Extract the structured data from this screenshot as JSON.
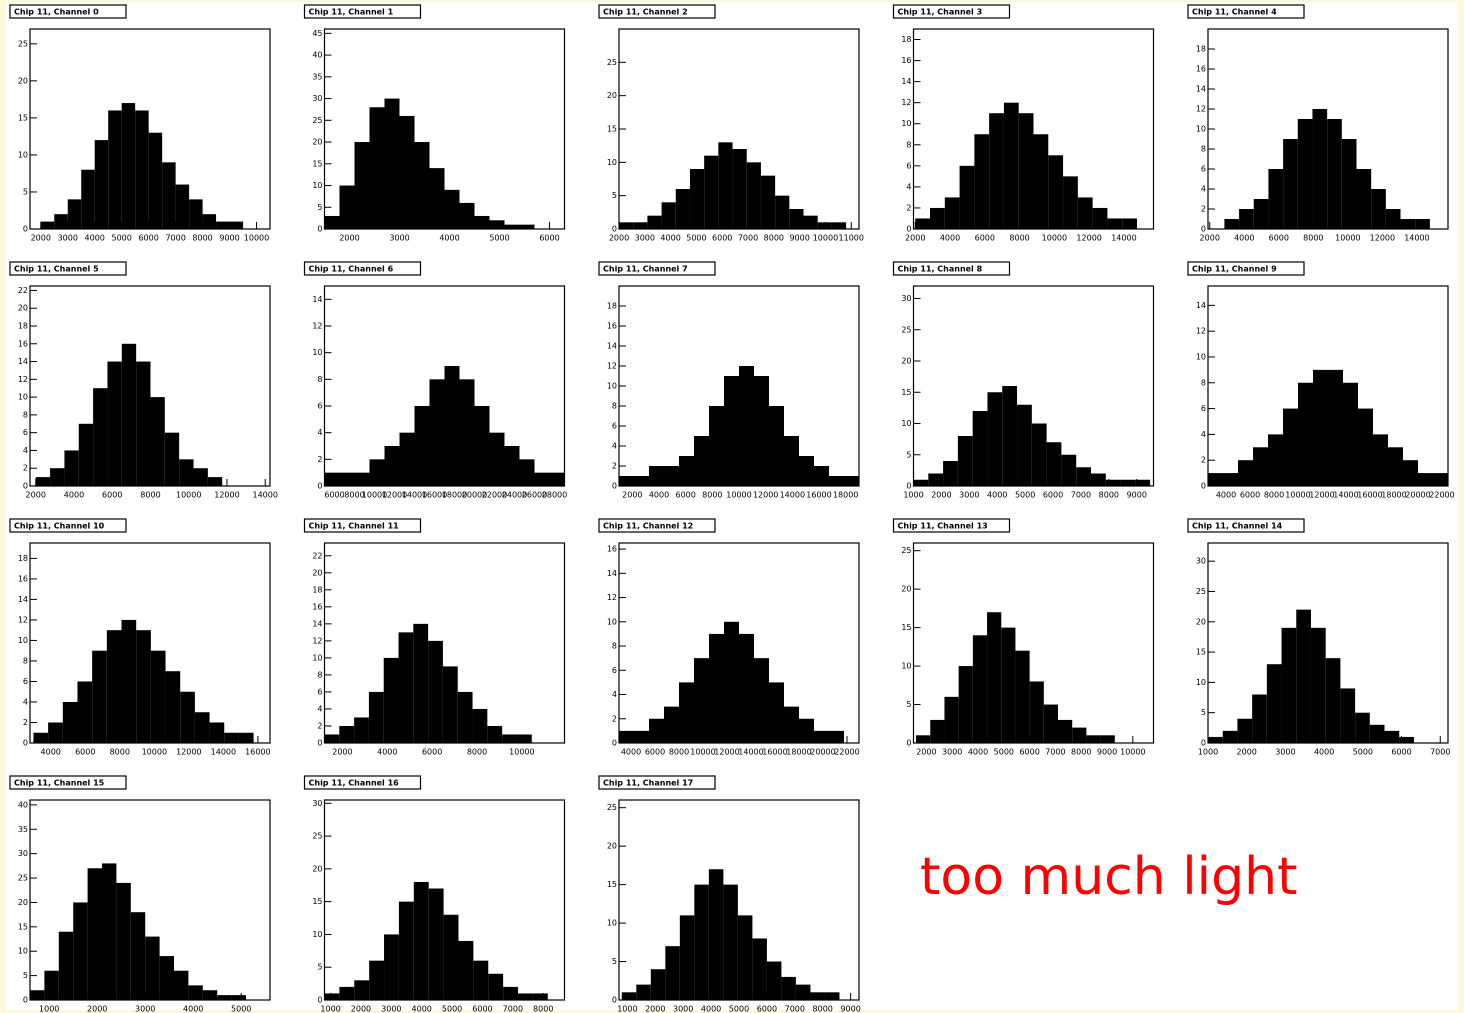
{
  "chart_data": [
    {
      "type": "histogram",
      "title": "Chip 11, Channel 0",
      "bins": [
        2000,
        2500,
        3000,
        3500,
        4000,
        4500,
        5000,
        5500,
        6000,
        6500,
        7000,
        7500,
        8000,
        8500,
        9000,
        9500,
        10000
      ],
      "values": [
        1,
        2,
        4,
        8,
        12,
        16,
        17,
        16,
        13,
        9,
        6,
        4,
        2,
        1,
        1,
        0
      ],
      "color": "#000000",
      "xlim": [
        1600,
        10500
      ],
      "xticks": [
        2000,
        3000,
        4000,
        5000,
        6000,
        7000,
        8000,
        9000,
        10000
      ],
      "ylim": [
        0,
        27
      ],
      "yticks": [
        0,
        5,
        10,
        15,
        20,
        25
      ]
    },
    {
      "type": "histogram",
      "title": "Chip 11, Channel 1",
      "bins": [
        1500,
        1800,
        2100,
        2400,
        2700,
        3000,
        3300,
        3600,
        3900,
        4200,
        4500,
        4800,
        5100,
        5400,
        5700,
        6000,
        6300
      ],
      "values": [
        3,
        10,
        20,
        28,
        30,
        26,
        20,
        14,
        9,
        6,
        3,
        2,
        1,
        1,
        0,
        0
      ],
      "color": "#000000",
      "xlim": [
        1500,
        6300
      ],
      "xticks": [
        2000,
        3000,
        4000,
        5000,
        6000
      ],
      "ylim": [
        0,
        46
      ],
      "yticks": [
        0,
        5,
        10,
        15,
        20,
        25,
        30,
        35,
        40,
        45
      ]
    },
    {
      "type": "histogram",
      "title": "Chip 11, Channel 2",
      "bins": [
        2000,
        2550,
        3100,
        3650,
        4200,
        4750,
        5300,
        5850,
        6400,
        6950,
        7500,
        8050,
        8600,
        9150,
        9700,
        10250,
        10800
      ],
      "values": [
        1,
        1,
        2,
        4,
        6,
        9,
        11,
        13,
        12,
        10,
        8,
        5,
        3,
        2,
        1,
        1
      ],
      "color": "#000000",
      "xlim": [
        2000,
        11300
      ],
      "xticks": [
        2000,
        3000,
        4000,
        5000,
        6000,
        7000,
        8000,
        9000,
        10000,
        11000
      ],
      "ylim": [
        0,
        30
      ],
      "yticks": [
        0,
        5,
        10,
        15,
        20,
        25
      ]
    },
    {
      "type": "histogram",
      "title": "Chip 11, Channel 3",
      "bins": [
        2000,
        2850,
        3700,
        4550,
        5400,
        6250,
        7100,
        7950,
        8800,
        9650,
        10500,
        11350,
        12200,
        13050,
        13900,
        14750,
        15600
      ],
      "values": [
        1,
        2,
        3,
        6,
        9,
        11,
        12,
        11,
        9,
        7,
        5,
        3,
        2,
        1,
        1,
        0
      ],
      "color": "#000000",
      "xlim": [
        1900,
        15700
      ],
      "xticks": [
        2000,
        4000,
        6000,
        8000,
        10000,
        12000,
        14000
      ],
      "ylim": [
        0,
        19
      ],
      "yticks": [
        0,
        2,
        4,
        6,
        8,
        10,
        12,
        14,
        16,
        18
      ]
    },
    {
      "type": "histogram",
      "title": "Chip 11, Channel 4",
      "bins": [
        2000,
        2850,
        3700,
        4550,
        5400,
        6250,
        7100,
        7950,
        8800,
        9650,
        10500,
        11350,
        12200,
        13050,
        13900,
        14750,
        15600
      ],
      "values": [
        0,
        1,
        2,
        3,
        6,
        9,
        11,
        12,
        11,
        9,
        6,
        4,
        2,
        1,
        1,
        0
      ],
      "color": "#000000",
      "xlim": [
        1900,
        15800
      ],
      "xticks": [
        2000,
        4000,
        6000,
        8000,
        10000,
        12000,
        14000
      ],
      "ylim": [
        0,
        20
      ],
      "yticks": [
        0,
        2,
        4,
        6,
        8,
        10,
        12,
        14,
        16,
        18
      ]
    },
    {
      "type": "histogram",
      "title": "Chip 11, Channel 5",
      "bins": [
        2000,
        2750,
        3500,
        4250,
        5000,
        5750,
        6500,
        7250,
        8000,
        8750,
        9500,
        10250,
        11000,
        11750,
        12500,
        13250,
        14000
      ],
      "values": [
        1,
        2,
        4,
        7,
        11,
        14,
        16,
        14,
        10,
        6,
        3,
        2,
        1,
        0,
        0,
        0
      ],
      "color": "#000000",
      "xlim": [
        1700,
        14250
      ],
      "xticks": [
        2000,
        4000,
        6000,
        8000,
        10000,
        12000,
        14000
      ],
      "ylim": [
        0,
        22.5
      ],
      "yticks": [
        0,
        2,
        4,
        6,
        8,
        10,
        12,
        14,
        16,
        18,
        20,
        22
      ]
    },
    {
      "type": "histogram",
      "title": "Chip 11, Channel 6",
      "bins": [
        5000,
        6500,
        8000,
        9500,
        11000,
        12500,
        14000,
        15500,
        17000,
        18500,
        20000,
        21500,
        23000,
        24500,
        26000,
        27500,
        29000
      ],
      "values": [
        1,
        1,
        1,
        2,
        3,
        4,
        6,
        8,
        9,
        8,
        6,
        4,
        3,
        2,
        1,
        1
      ],
      "color": "#000000",
      "xlim": [
        5000,
        29000
      ],
      "xticks": [
        6000,
        8000,
        10000,
        12000,
        14000,
        16000,
        18000,
        20000,
        22000,
        24000,
        26000,
        28000
      ],
      "ylim": [
        0,
        15
      ],
      "yticks": [
        0,
        2,
        4,
        6,
        8,
        10,
        12,
        14
      ]
    },
    {
      "type": "histogram",
      "title": "Chip 11, Channel 7",
      "bins": [
        1000,
        2125,
        3250,
        4375,
        5500,
        6625,
        7750,
        8875,
        10000,
        11125,
        12250,
        13375,
        14500,
        15625,
        16750,
        17875,
        19000
      ],
      "values": [
        1,
        1,
        2,
        2,
        3,
        5,
        8,
        11,
        12,
        11,
        8,
        5,
        3,
        2,
        1,
        1
      ],
      "color": "#000000",
      "xlim": [
        1000,
        19000
      ],
      "xticks": [
        2000,
        4000,
        6000,
        8000,
        10000,
        12000,
        14000,
        16000,
        18000
      ],
      "ylim": [
        0,
        20
      ],
      "yticks": [
        0,
        2,
        4,
        6,
        8,
        10,
        12,
        14,
        16,
        18
      ]
    },
    {
      "type": "histogram",
      "title": "Chip 11, Channel 8",
      "bins": [
        1000,
        1530,
        2060,
        2590,
        3120,
        3650,
        4180,
        4710,
        5240,
        5770,
        6300,
        6830,
        7360,
        7890,
        8420,
        8950,
        9480
      ],
      "values": [
        1,
        2,
        4,
        8,
        12,
        15,
        16,
        13,
        10,
        7,
        5,
        3,
        2,
        1,
        1,
        1
      ],
      "color": "#000000",
      "xlim": [
        1000,
        9600
      ],
      "xticks": [
        1000,
        2000,
        3000,
        4000,
        5000,
        6000,
        7000,
        8000,
        9000
      ],
      "ylim": [
        0,
        32
      ],
      "yticks": [
        0,
        5,
        10,
        15,
        20,
        25,
        30
      ]
    },
    {
      "type": "histogram",
      "title": "Chip 11, Channel 9",
      "bins": [
        2500,
        3750,
        5000,
        6250,
        7500,
        8750,
        10000,
        11250,
        12500,
        13750,
        15000,
        16250,
        17500,
        18750,
        20000,
        21250,
        22500
      ],
      "values": [
        1,
        1,
        2,
        3,
        4,
        6,
        8,
        9,
        9,
        8,
        6,
        4,
        3,
        2,
        1,
        1
      ],
      "color": "#000000",
      "xlim": [
        2500,
        22500
      ],
      "xticks": [
        4000,
        6000,
        8000,
        10000,
        12000,
        14000,
        16000,
        18000,
        20000,
        22000
      ],
      "ylim": [
        0,
        15.5
      ],
      "yticks": [
        0,
        2,
        4,
        6,
        8,
        10,
        12,
        14
      ]
    },
    {
      "type": "histogram",
      "title": "Chip 11, Channel 10",
      "bins": [
        3000,
        3850,
        4700,
        5550,
        6400,
        7250,
        8100,
        8950,
        9800,
        10650,
        11500,
        12350,
        13200,
        14050,
        14900,
        15750,
        16600
      ],
      "values": [
        1,
        2,
        4,
        6,
        9,
        11,
        12,
        11,
        9,
        7,
        5,
        3,
        2,
        1,
        1,
        0
      ],
      "color": "#000000",
      "xlim": [
        2800,
        16700
      ],
      "xticks": [
        4000,
        6000,
        8000,
        10000,
        12000,
        14000,
        16000
      ],
      "ylim": [
        0,
        19.5
      ],
      "yticks": [
        0,
        2,
        4,
        6,
        8,
        10,
        12,
        14,
        16,
        18
      ]
    },
    {
      "type": "histogram",
      "title": "Chip 11, Channel 11",
      "bins": [
        1200,
        1860,
        2520,
        3180,
        3840,
        4500,
        5160,
        5820,
        6480,
        7140,
        7800,
        8460,
        9120,
        9780,
        10440,
        11100,
        11760
      ],
      "values": [
        1,
        2,
        3,
        6,
        10,
        13,
        14,
        12,
        9,
        6,
        4,
        2,
        1,
        1,
        0,
        0
      ],
      "color": "#000000",
      "xlim": [
        1200,
        11900
      ],
      "xticks": [
        2000,
        4000,
        6000,
        8000,
        10000
      ],
      "ylim": [
        0,
        23.5
      ],
      "yticks": [
        0,
        2,
        4,
        6,
        8,
        10,
        12,
        14,
        16,
        18,
        20,
        22
      ]
    },
    {
      "type": "histogram",
      "title": "Chip 11, Channel 12",
      "bins": [
        3000,
        4250,
        5500,
        6750,
        8000,
        9250,
        10500,
        11750,
        13000,
        14250,
        15500,
        16750,
        18000,
        19250,
        20500,
        21750,
        23000
      ],
      "values": [
        1,
        1,
        2,
        3,
        5,
        7,
        9,
        10,
        9,
        7,
        5,
        3,
        2,
        1,
        1,
        0
      ],
      "color": "#000000",
      "xlim": [
        3000,
        23000
      ],
      "xticks": [
        4000,
        6000,
        8000,
        10000,
        12000,
        14000,
        16000,
        18000,
        20000,
        22000
      ],
      "ylim": [
        0,
        16.5
      ],
      "yticks": [
        0,
        2,
        4,
        6,
        8,
        10,
        12,
        14,
        16
      ]
    },
    {
      "type": "histogram",
      "title": "Chip 11, Channel 13",
      "bins": [
        1600,
        2150,
        2700,
        3250,
        3800,
        4350,
        4900,
        5450,
        6000,
        6550,
        7100,
        7650,
        8200,
        8750,
        9300,
        9850,
        10400
      ],
      "values": [
        1,
        3,
        6,
        10,
        14,
        17,
        15,
        12,
        8,
        5,
        3,
        2,
        1,
        1,
        0,
        0
      ],
      "color": "#000000",
      "xlim": [
        1500,
        10800
      ],
      "xticks": [
        2000,
        3000,
        4000,
        5000,
        6000,
        7000,
        8000,
        9000,
        10000
      ],
      "ylim": [
        0,
        26
      ],
      "yticks": [
        0,
        5,
        10,
        15,
        20,
        25
      ]
    },
    {
      "type": "histogram",
      "title": "Chip 11, Channel 14",
      "bins": [
        1000,
        1380,
        1760,
        2140,
        2520,
        2900,
        3280,
        3660,
        4040,
        4420,
        4800,
        5180,
        5560,
        5940,
        6320,
        6700,
        7080
      ],
      "values": [
        1,
        2,
        4,
        8,
        13,
        19,
        22,
        19,
        14,
        9,
        5,
        3,
        2,
        1,
        0,
        0
      ],
      "color": "#000000",
      "xlim": [
        1000,
        7200
      ],
      "xticks": [
        1000,
        2000,
        3000,
        4000,
        5000,
        6000,
        7000
      ],
      "ylim": [
        0,
        33
      ],
      "yticks": [
        0,
        5,
        10,
        15,
        20,
        25,
        30
      ]
    },
    {
      "type": "histogram",
      "title": "Chip 11, Channel 15",
      "bins": [
        600,
        900,
        1200,
        1500,
        1800,
        2100,
        2400,
        2700,
        3000,
        3300,
        3600,
        3900,
        4200,
        4500,
        4800,
        5100,
        5400
      ],
      "values": [
        2,
        6,
        14,
        20,
        27,
        28,
        24,
        18,
        13,
        9,
        6,
        3,
        2,
        1,
        1,
        0
      ],
      "color": "#000000",
      "xlim": [
        600,
        5600
      ],
      "xticks": [
        1000,
        2000,
        3000,
        4000,
        5000
      ],
      "ylim": [
        0,
        41
      ],
      "yticks": [
        0,
        5,
        10,
        15,
        20,
        25,
        30,
        35,
        40
      ]
    },
    {
      "type": "histogram",
      "title": "Chip 11, Channel 16",
      "bins": [
        800,
        1290,
        1780,
        2270,
        2760,
        3250,
        3740,
        4230,
        4720,
        5210,
        5700,
        6190,
        6680,
        7170,
        7660,
        8150,
        8640
      ],
      "values": [
        1,
        2,
        3,
        6,
        10,
        15,
        18,
        17,
        13,
        9,
        6,
        4,
        2,
        1,
        1,
        0
      ],
      "color": "#000000",
      "xlim": [
        800,
        8700
      ],
      "xticks": [
        1000,
        2000,
        3000,
        4000,
        5000,
        6000,
        7000,
        8000
      ],
      "ylim": [
        0,
        30.5
      ],
      "yticks": [
        0,
        5,
        10,
        15,
        20,
        25,
        30
      ]
    },
    {
      "type": "histogram",
      "title": "Chip 11, Channel 17",
      "bins": [
        800,
        1320,
        1840,
        2360,
        2880,
        3400,
        3920,
        4440,
        4960,
        5480,
        6000,
        6520,
        7040,
        7560,
        8080,
        8600,
        9120
      ],
      "values": [
        1,
        2,
        4,
        7,
        11,
        15,
        17,
        15,
        11,
        8,
        5,
        3,
        2,
        1,
        1,
        0
      ],
      "color": "#000000",
      "xlim": [
        700,
        9300
      ],
      "xticks": [
        1000,
        2000,
        3000,
        4000,
        5000,
        6000,
        7000,
        8000,
        9000
      ],
      "ylim": [
        0,
        26
      ],
      "yticks": [
        0,
        5,
        10,
        15,
        20,
        25
      ]
    }
  ],
  "caption": "too much light"
}
